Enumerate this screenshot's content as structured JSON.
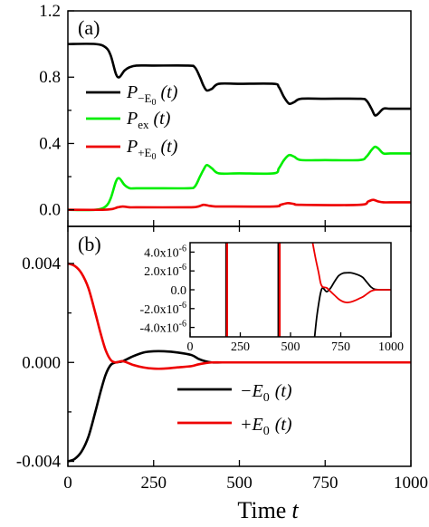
{
  "chart_data": [
    {
      "panel": "(a)",
      "type": "line",
      "xlim": [
        0,
        1000
      ],
      "ylim": [
        -0.1,
        1.2
      ],
      "y_ticks": [
        "0.0",
        "0.4",
        "0.8",
        "1.2"
      ],
      "y_tick_values": [
        0.0,
        0.4,
        0.8,
        1.2
      ],
      "legend_position": "middle-left",
      "series": [
        {
          "name": "P−E0(t)",
          "legend": {
            "main": "P",
            "sub": "−E",
            "subsub": "0",
            "tail": "(t)"
          },
          "color": "#000000",
          "x": [
            0,
            80,
            110,
            125,
            140,
            150,
            165,
            180,
            200,
            250,
            350,
            370,
            385,
            395,
            405,
            420,
            440,
            500,
            600,
            615,
            630,
            645,
            660,
            680,
            750,
            850,
            870,
            885,
            895,
            905,
            920,
            940,
            1000
          ],
          "y": [
            1.0,
            1.0,
            0.98,
            0.93,
            0.82,
            0.8,
            0.84,
            0.86,
            0.87,
            0.87,
            0.87,
            0.86,
            0.8,
            0.75,
            0.72,
            0.73,
            0.76,
            0.76,
            0.76,
            0.74,
            0.68,
            0.64,
            0.65,
            0.67,
            0.67,
            0.67,
            0.66,
            0.61,
            0.57,
            0.58,
            0.61,
            0.61,
            0.61
          ]
        },
        {
          "name": "Pex(t)",
          "legend": {
            "main": "P",
            "sub": "ex",
            "subsub": "",
            "tail": "(t)"
          },
          "color": "#00ee00",
          "x": [
            0,
            80,
            110,
            125,
            140,
            150,
            165,
            180,
            200,
            250,
            350,
            370,
            385,
            395,
            405,
            420,
            440,
            500,
            600,
            615,
            630,
            645,
            660,
            680,
            750,
            850,
            870,
            885,
            895,
            905,
            920,
            940,
            1000
          ],
          "y": [
            0.0,
            0.0,
            0.02,
            0.07,
            0.17,
            0.19,
            0.15,
            0.13,
            0.13,
            0.13,
            0.13,
            0.14,
            0.2,
            0.24,
            0.27,
            0.25,
            0.22,
            0.22,
            0.22,
            0.25,
            0.3,
            0.33,
            0.32,
            0.3,
            0.3,
            0.3,
            0.32,
            0.36,
            0.38,
            0.37,
            0.34,
            0.34,
            0.34
          ]
        },
        {
          "name": "P+E0(t)",
          "legend": {
            "main": "P",
            "sub": "+E",
            "subsub": "0",
            "tail": "(t)"
          },
          "color": "#ee0000",
          "x": [
            0,
            100,
            130,
            145,
            160,
            180,
            200,
            350,
            380,
            395,
            410,
            430,
            450,
            600,
            620,
            640,
            660,
            680,
            850,
            875,
            890,
            905,
            920,
            940,
            1000
          ],
          "y": [
            0.0,
            0.0,
            0.005,
            0.015,
            0.02,
            0.015,
            0.015,
            0.015,
            0.02,
            0.03,
            0.025,
            0.02,
            0.02,
            0.02,
            0.03,
            0.04,
            0.035,
            0.03,
            0.03,
            0.05,
            0.06,
            0.05,
            0.045,
            0.045,
            0.045
          ]
        }
      ]
    },
    {
      "panel": "(b)",
      "type": "line",
      "xlim": [
        0,
        1000
      ],
      "ylim": [
        -0.0042,
        0.0055
      ],
      "y_ticks": [
        "-0.004",
        "0.000",
        "0.004"
      ],
      "y_tick_values": [
        -0.004,
        0.0,
        0.004
      ],
      "x_ticks": [
        "0",
        "250",
        "500",
        "750",
        "1000"
      ],
      "x_tick_values": [
        0,
        250,
        500,
        750,
        1000
      ],
      "xlabel_main": "Time",
      "xlabel_var": "t",
      "legend_position": "lower-right",
      "series": [
        {
          "name": "−E0(t)",
          "legend": {
            "main": "−E",
            "sub": "0",
            "tail": "(t)"
          },
          "color": "#000000",
          "x": [
            0,
            20,
            40,
            60,
            80,
            95,
            110,
            125,
            140,
            160,
            190,
            220,
            250,
            280,
            320,
            360,
            380,
            400,
            420,
            450,
            500,
            1000
          ],
          "y": [
            -0.004,
            -0.0039,
            -0.0036,
            -0.003,
            -0.002,
            -0.0012,
            -0.0005,
            -0.0001,
            0.0,
            5e-05,
            0.00025,
            0.0004,
            0.00045,
            0.00045,
            0.0004,
            0.0003,
            0.00015,
            5e-05,
            0.0,
            0.0,
            0.0,
            0.0
          ]
        },
        {
          "name": "+E0(t)",
          "legend": {
            "main": "+E",
            "sub": "0",
            "tail": "(t)"
          },
          "color": "#ee0000",
          "x": [
            0,
            20,
            40,
            60,
            80,
            95,
            110,
            125,
            140,
            160,
            190,
            220,
            250,
            280,
            320,
            360,
            380,
            400,
            420,
            450,
            500,
            1000
          ],
          "y": [
            0.004,
            0.0039,
            0.0036,
            0.003,
            0.002,
            0.0012,
            0.0005,
            0.0001,
            0.0,
            5e-05,
            -0.0001,
            -0.0002,
            -0.00025,
            -0.00025,
            -0.0002,
            -0.00015,
            -8e-05,
            -3e-05,
            0.0,
            0.0,
            0.0,
            0.0
          ]
        }
      ]
    },
    {
      "panel": "inset",
      "type": "line",
      "xlim": [
        0,
        1000
      ],
      "ylim": [
        -5e-06,
        5e-06
      ],
      "y_ticks": [
        "4.0x10⁻⁶",
        "2.0x10⁻⁶",
        "0.0",
        "-2.0x10⁻⁶",
        "-4.0x10⁻⁶"
      ],
      "y_tick_values": [
        4e-06,
        2e-06,
        0.0,
        -2e-06,
        -4e-06
      ],
      "x_ticks": [
        "0",
        "250",
        "500",
        "750",
        "1000"
      ],
      "x_tick_values": [
        0,
        250,
        500,
        750,
        1000
      ],
      "spikes": [
        {
          "x": 180,
          "color": "#000000"
        },
        {
          "x": 184,
          "color": "#ee0000"
        },
        {
          "x": 440,
          "color": "#000000"
        },
        {
          "x": 446,
          "color": "#ee0000"
        }
      ],
      "series": [
        {
          "name": "−E0(t)",
          "color": "#000000",
          "x": [
            620,
            630,
            640,
            650,
            660,
            680,
            700,
            720,
            740,
            760,
            780,
            800,
            820,
            840,
            860,
            880,
            900,
            920,
            950,
            1000
          ],
          "y": [
            -5e-06,
            -3e-06,
            -1.5e-06,
            -3e-07,
            2e-07,
            -2e-07,
            2e-07,
            9e-07,
            1.5e-06,
            1.75e-06,
            1.8e-06,
            1.8e-06,
            1.7e-06,
            1.55e-06,
            1.3e-06,
            8e-07,
            3e-07,
            5e-08,
            0.0,
            0.0
          ]
        },
        {
          "name": "+E0(t)",
          "color": "#ee0000",
          "x": [
            610,
            625,
            640,
            650,
            660,
            680,
            700,
            720,
            740,
            760,
            780,
            800,
            820,
            840,
            860,
            880,
            900,
            920,
            950,
            1000
          ],
          "y": [
            5e-06,
            3.3e-06,
            1.8e-06,
            7e-07,
            3e-07,
            2e-07,
            -2e-07,
            -6e-07,
            -1e-06,
            -1.25e-06,
            -1.35e-06,
            -1.3e-06,
            -1.15e-06,
            -9.5e-07,
            -7.5e-07,
            -4.5e-07,
            -1.5e-07,
            -2e-08,
            0.0,
            0.0
          ]
        }
      ]
    }
  ]
}
